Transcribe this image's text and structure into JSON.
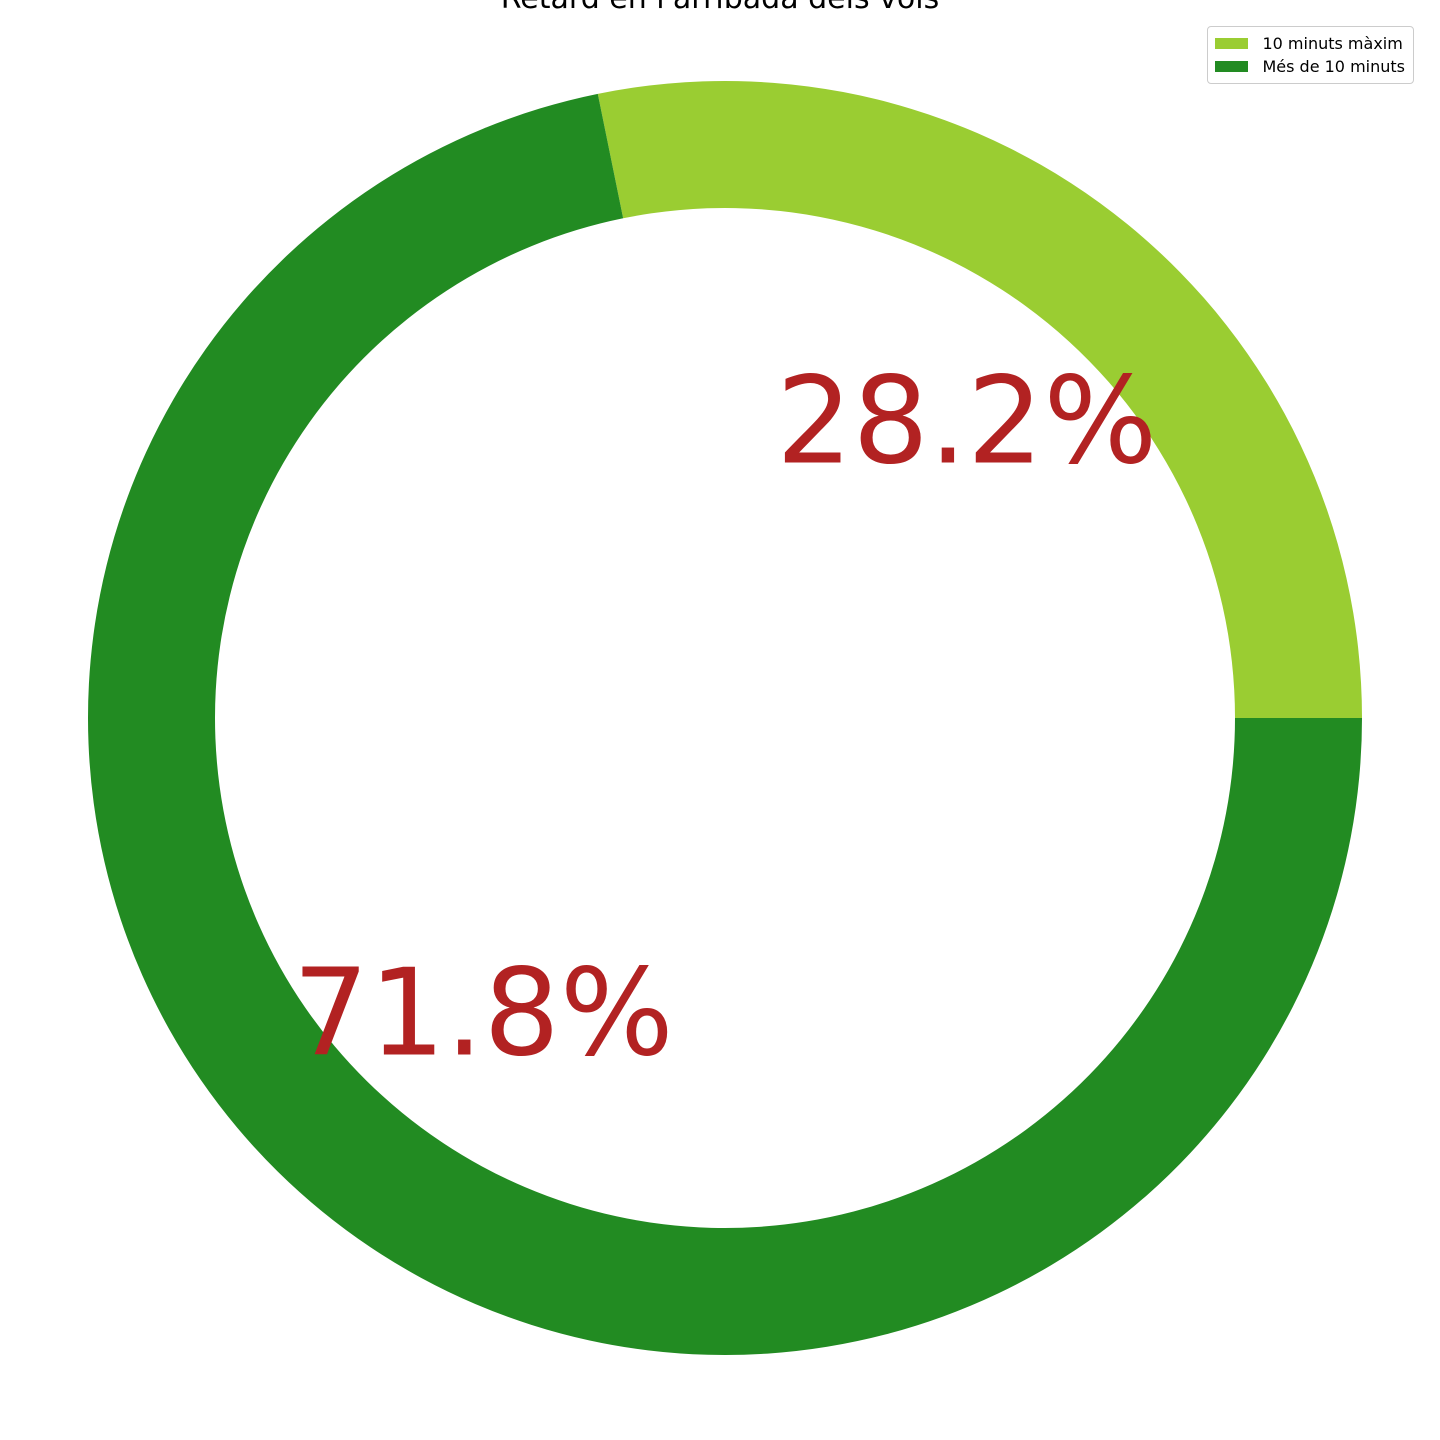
{
  "chart_data": {
    "type": "pie",
    "style": "donut",
    "title": "Retard en l'arribada dels vols",
    "categories": [
      "10 minuts màxim",
      "Més de 10 minuts"
    ],
    "values": [
      28.2,
      71.8
    ],
    "value_labels": [
      "28.2%",
      "71.8%"
    ],
    "colors": [
      "#9acd32",
      "#228b22"
    ],
    "label_color": "#b22222",
    "start_angle_deg": 0,
    "direction": "counterclockwise",
    "legend_position": "top-right"
  }
}
